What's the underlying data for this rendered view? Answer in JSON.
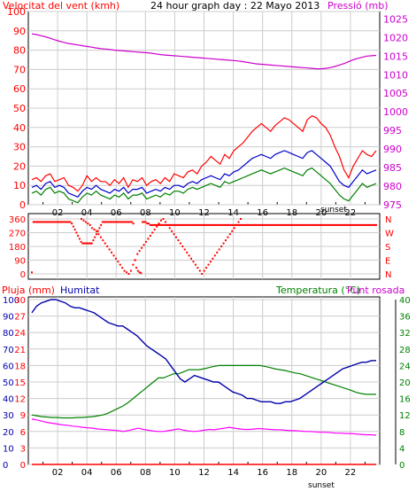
{
  "colors": {
    "wind": "#ff0000",
    "wind_avg": "#0000cc",
    "wind_gust": "#008000",
    "pressure": "#cc00cc",
    "direction": "#ff0000",
    "rain": "#ff0000",
    "humidity": "#0000aa",
    "temperature": "#008000",
    "dewpoint": "#ff00ff",
    "grid": "#cccccc",
    "text": "#000000"
  },
  "chart_data": [
    {
      "type": "line",
      "panel": "wind_pressure",
      "title": "24 hour graph day : 22 Mayo 2013",
      "left_label": "Velocitat del vent (kmh)",
      "right_label": "Pressió (mb)",
      "x_ticks": [
        "02",
        "04",
        "06",
        "08",
        "10",
        "12",
        "14",
        "16",
        "18",
        "20",
        "22"
      ],
      "sunset_label": "sunset",
      "left_ticks": [
        "0",
        "10",
        "20",
        "30",
        "40",
        "50",
        "60",
        "70",
        "80",
        "90",
        "100"
      ],
      "right_ticks": [
        "975",
        "980",
        "985",
        "990",
        "995",
        "1000",
        "1005",
        "1010",
        "1015",
        "1020",
        "1025"
      ],
      "ylim_left": [
        0,
        100
      ],
      "ylim_right": [
        975,
        1027
      ],
      "grid": true,
      "series": [
        {
          "key": "wind_max",
          "values": [
            13,
            14,
            12,
            15,
            16,
            12,
            13,
            14,
            10,
            9,
            7,
            10,
            15,
            12,
            14,
            12,
            12,
            10,
            13,
            11,
            14,
            9,
            13,
            12,
            14,
            10,
            12,
            13,
            11,
            14,
            12,
            16,
            15,
            14,
            17,
            18,
            16,
            20,
            22,
            25,
            23,
            21,
            26,
            24,
            28,
            30,
            32,
            35,
            38,
            40,
            42,
            40,
            38,
            41,
            43,
            45,
            44,
            42,
            40,
            38,
            44,
            46,
            45,
            42,
            40,
            36,
            30,
            25,
            18,
            14,
            20,
            24,
            28,
            26,
            25,
            28
          ]
        },
        {
          "key": "wind_avg",
          "values": [
            9,
            10,
            8,
            11,
            12,
            9,
            10,
            9,
            6,
            5,
            4,
            7,
            9,
            8,
            10,
            8,
            7,
            6,
            8,
            7,
            9,
            6,
            8,
            8,
            9,
            6,
            7,
            8,
            7,
            9,
            8,
            10,
            10,
            9,
            11,
            12,
            11,
            13,
            14,
            15,
            14,
            13,
            16,
            15,
            17,
            18,
            20,
            22,
            24,
            25,
            26,
            25,
            24,
            26,
            27,
            28,
            27,
            26,
            25,
            24,
            27,
            28,
            26,
            24,
            22,
            20,
            16,
            12,
            10,
            9,
            12,
            15,
            18,
            16,
            17,
            18
          ]
        },
        {
          "key": "wind_min",
          "values": [
            6,
            7,
            5,
            8,
            9,
            6,
            7,
            6,
            3,
            2,
            1,
            4,
            6,
            5,
            7,
            5,
            4,
            3,
            5,
            4,
            6,
            3,
            5,
            5,
            6,
            3,
            4,
            5,
            4,
            6,
            5,
            7,
            7,
            6,
            8,
            9,
            8,
            9,
            10,
            11,
            10,
            9,
            12,
            11,
            12,
            13,
            14,
            15,
            16,
            17,
            18,
            17,
            16,
            17,
            18,
            19,
            18,
            17,
            16,
            15,
            18,
            19,
            17,
            15,
            13,
            11,
            8,
            5,
            3,
            2,
            5,
            8,
            11,
            9,
            10,
            11
          ]
        },
        {
          "key": "pressure",
          "values": [
            1021,
            1020.8,
            1020.5,
            1020.2,
            1019.8,
            1019.4,
            1019.0,
            1018.7,
            1018.4,
            1018.2,
            1018.0,
            1017.8,
            1017.6,
            1017.4,
            1017.2,
            1017.0,
            1016.9,
            1016.8,
            1016.6,
            1016.5,
            1016.4,
            1016.3,
            1016.2,
            1016.1,
            1016.0,
            1015.9,
            1015.8,
            1015.6,
            1015.4,
            1015.3,
            1015.2,
            1015.1,
            1015.0,
            1014.9,
            1014.8,
            1014.7,
            1014.6,
            1014.5,
            1014.4,
            1014.3,
            1014.2,
            1014.1,
            1014.0,
            1013.9,
            1013.8,
            1013.7,
            1013.5,
            1013.3,
            1013.1,
            1012.9,
            1012.8,
            1012.7,
            1012.6,
            1012.5,
            1012.4,
            1012.3,
            1012.2,
            1012.1,
            1012.0,
            1011.9,
            1011.8,
            1011.7,
            1011.6,
            1011.6,
            1011.7,
            1011.9,
            1012.2,
            1012.6,
            1013.0,
            1013.5,
            1014.0,
            1014.4,
            1014.7,
            1015.0,
            1015.1,
            1015.2
          ]
        }
      ]
    },
    {
      "type": "scatter",
      "panel": "wind_direction",
      "left_ticks": [
        "0",
        "90",
        "180",
        "270",
        "360"
      ],
      "right_ticks": [
        "N",
        "E",
        "S",
        "W",
        "N"
      ],
      "ylim": [
        0,
        360
      ],
      "series": [
        {
          "name": "direction",
          "values": [
            10,
            340,
            340,
            340,
            340,
            340,
            340,
            340,
            340,
            340,
            340,
            340,
            340,
            340,
            340,
            340,
            340,
            340,
            340,
            340,
            340,
            340,
            340,
            340,
            340,
            340,
            330,
            310,
            290,
            270,
            250,
            230,
            210,
            200,
            200,
            200,
            200,
            200,
            200,
            200,
            220,
            240,
            260,
            280,
            300,
            320,
            340,
            340,
            340,
            340,
            340,
            340,
            340,
            340,
            340,
            340,
            340,
            340,
            340,
            340,
            340,
            340,
            340,
            340,
            340,
            340,
            330,
            90,
            40,
            20,
            10,
            5,
            340,
            340,
            340,
            330,
            330,
            320,
            320,
            320,
            320,
            320,
            320,
            320,
            320,
            320,
            320,
            320,
            320,
            320,
            320,
            320,
            320,
            320,
            320,
            320,
            320,
            320,
            320,
            320,
            320,
            320,
            320,
            320,
            320,
            320,
            320,
            320,
            320,
            320,
            320,
            320,
            320,
            320,
            320,
            320,
            320,
            320,
            320,
            320,
            320,
            320,
            320,
            320,
            320,
            320,
            320,
            320,
            320,
            320,
            320,
            320,
            320,
            320,
            320,
            320,
            320,
            320,
            320,
            320,
            320,
            320,
            320,
            320,
            320,
            320,
            320,
            320,
            320,
            320,
            320,
            320,
            320,
            320,
            320,
            320,
            320,
            320,
            320,
            320,
            320,
            320,
            320,
            320,
            320,
            320,
            320,
            320,
            320,
            320,
            320,
            320,
            320,
            320,
            320,
            320,
            320,
            320,
            320,
            320,
            320,
            320,
            320,
            320,
            320,
            320,
            320,
            320,
            320,
            320,
            320,
            320,
            320,
            320,
            320,
            320,
            320,
            320,
            320,
            320,
            320,
            320,
            320,
            320,
            320,
            320,
            320,
            320,
            320,
            320,
            320,
            320,
            320,
            320,
            320,
            320,
            320,
            320,
            320,
            320,
            320,
            320,
            320,
            320,
            320
          ]
        },
        {
          "name": "direction_scatter",
          "values": [
            360,
            350,
            340,
            330,
            320,
            300,
            290,
            280,
            260,
            240,
            220,
            200,
            180,
            160,
            140,
            120,
            100,
            80,
            60,
            40,
            20,
            10,
            0,
            20,
            60,
            90,
            130,
            150,
            170,
            190,
            210,
            230,
            250,
            270,
            290,
            310,
            330,
            350,
            360,
            340,
            320,
            300,
            280,
            260,
            240,
            220,
            200,
            180,
            160,
            140,
            120,
            100,
            80,
            60,
            40,
            20,
            0,
            20,
            40,
            60,
            80,
            100,
            120,
            140,
            160,
            180,
            200,
            220,
            240,
            260,
            280,
            300,
            320,
            340,
            360
          ]
        }
      ]
    },
    {
      "type": "line",
      "panel": "humidity_temp",
      "left_label_1": "Pluja (mm)",
      "left_label_2": "Humitat",
      "right_label_1": "Temperatura (°C)",
      "right_label_2": "Punt rosada",
      "x_ticks": [
        "02",
        "04",
        "06",
        "08",
        "10",
        "12",
        "14",
        "16",
        "18",
        "20",
        "22"
      ],
      "sunset_label": "sunset",
      "rain_ticks": [
        "0",
        "3",
        "6",
        "9",
        "12",
        "15",
        "18",
        "21",
        "24",
        "27",
        "30"
      ],
      "humidity_ticks": [
        "0",
        "10",
        "20",
        "30",
        "40",
        "50",
        "60",
        "70",
        "80",
        "90",
        "100"
      ],
      "temp_ticks": [
        "0",
        "4",
        "8",
        "12",
        "16",
        "20",
        "24",
        "28",
        "32",
        "36",
        "40"
      ],
      "ylim_humidity": [
        0,
        100
      ],
      "ylim_temp": [
        0,
        40
      ],
      "series": [
        {
          "key": "humidity",
          "values": [
            92,
            96,
            98,
            99,
            100,
            100,
            99,
            98,
            96,
            95,
            95,
            94,
            93,
            92,
            90,
            88,
            86,
            85,
            84,
            84,
            82,
            80,
            78,
            75,
            72,
            70,
            68,
            66,
            64,
            60,
            56,
            52,
            50,
            52,
            54,
            53,
            52,
            51,
            50,
            50,
            48,
            46,
            44,
            43,
            42,
            40,
            40,
            39,
            38,
            38,
            38,
            37,
            37,
            38,
            38,
            39,
            40,
            42,
            44,
            46,
            48,
            50,
            52,
            54,
            56,
            58,
            59,
            60,
            61,
            62,
            62,
            63,
            63
          ]
        },
        {
          "key": "temperature",
          "values": [
            12,
            11.8,
            11.6,
            11.5,
            11.4,
            11.4,
            11.3,
            11.3,
            11.3,
            11.4,
            11.4,
            11.5,
            11.6,
            11.8,
            12,
            12.4,
            13,
            13.6,
            14.2,
            15,
            16,
            17,
            18,
            19,
            20,
            21,
            21,
            21.5,
            22,
            22,
            22.5,
            23,
            23,
            23,
            23.2,
            23.5,
            23.8,
            24,
            24,
            24,
            24,
            24,
            24,
            24,
            24,
            24,
            23.8,
            23.5,
            23.2,
            23,
            22.8,
            22.5,
            22.2,
            22,
            21.6,
            21.2,
            20.8,
            20.4,
            20,
            19.6,
            19.2,
            18.8,
            18.4,
            18,
            17.5,
            17.2,
            17,
            17,
            17
          ]
        },
        {
          "key": "dewpoint",
          "values": [
            11,
            10.8,
            10.5,
            10.2,
            10,
            9.8,
            9.6,
            9.5,
            9.3,
            9.2,
            9,
            8.9,
            8.8,
            8.6,
            8.5,
            8.4,
            8.3,
            8.2,
            8,
            8.2,
            8.5,
            8.8,
            8.5,
            8.3,
            8.1,
            8.0,
            8.0,
            8.2,
            8.4,
            8.6,
            8.3,
            8.1,
            8.0,
            8.1,
            8.3,
            8.5,
            8.4,
            8.6,
            8.8,
            9.0,
            8.8,
            8.6,
            8.5,
            8.5,
            8.6,
            8.7,
            8.6,
            8.5,
            8.4,
            8.4,
            8.3,
            8.2,
            8.2,
            8.1,
            8.0,
            8.0,
            7.9,
            7.8,
            7.8,
            7.7,
            7.6,
            7.6,
            7.5,
            7.5,
            7.4,
            7.3,
            7.2,
            7.2,
            7.1
          ]
        },
        {
          "key": "rain",
          "values": [
            0,
            0,
            0,
            0,
            0,
            0,
            0,
            0,
            0,
            0,
            0,
            0,
            0,
            0,
            0,
            0,
            0,
            0,
            0,
            0,
            0,
            0,
            0,
            0
          ]
        }
      ]
    }
  ]
}
